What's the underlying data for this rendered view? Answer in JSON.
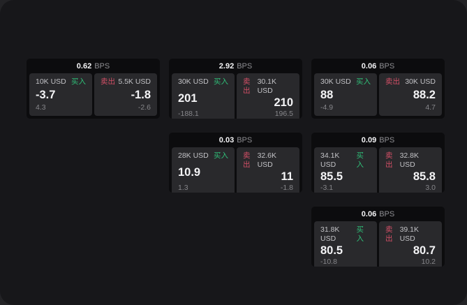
{
  "labels": {
    "buy": "买入",
    "sell": "卖出",
    "bps_unit": "BPS"
  },
  "colors": {
    "buy_accent": "#2fbf78",
    "sell_accent": "#d24f66",
    "panel_background": "#17171a",
    "card_background": "#0c0c0e",
    "tile_background": "#29292c"
  },
  "cards": [
    {
      "bps": "0.62",
      "col": 1,
      "row": 1,
      "buy": {
        "amount": "10K USD",
        "price": "-3.7",
        "delta": "4.3"
      },
      "sell": {
        "amount": "5.5K USD",
        "price": "-1.8",
        "delta": "-2.6"
      }
    },
    {
      "bps": "2.92",
      "col": 2,
      "row": 1,
      "buy": {
        "amount": "30K USD",
        "price": "201",
        "delta": "-188.1"
      },
      "sell": {
        "amount": "30.1K USD",
        "price": "210",
        "delta": "196.5"
      }
    },
    {
      "bps": "0.06",
      "col": 3,
      "row": 1,
      "buy": {
        "amount": "30K USD",
        "price": "88",
        "delta": "-4.9"
      },
      "sell": {
        "amount": "30K USD",
        "price": "88.2",
        "delta": "4.7"
      }
    },
    {
      "bps": "0.03",
      "col": 2,
      "row": 2,
      "buy": {
        "amount": "28K USD",
        "price": "10.9",
        "delta": "1.3"
      },
      "sell": {
        "amount": "32.6K USD",
        "price": "11",
        "delta": "-1.8"
      }
    },
    {
      "bps": "0.09",
      "col": 3,
      "row": 2,
      "buy": {
        "amount": "34.1K USD",
        "price": "85.5",
        "delta": "-3.1"
      },
      "sell": {
        "amount": "32.8K USD",
        "price": "85.8",
        "delta": "3.0"
      }
    },
    {
      "bps": "0.06",
      "col": 3,
      "row": 3,
      "buy": {
        "amount": "31.8K USD",
        "price": "80.5",
        "delta": "-10.8"
      },
      "sell": {
        "amount": "39.1K USD",
        "price": "80.7",
        "delta": "10.2"
      }
    }
  ]
}
